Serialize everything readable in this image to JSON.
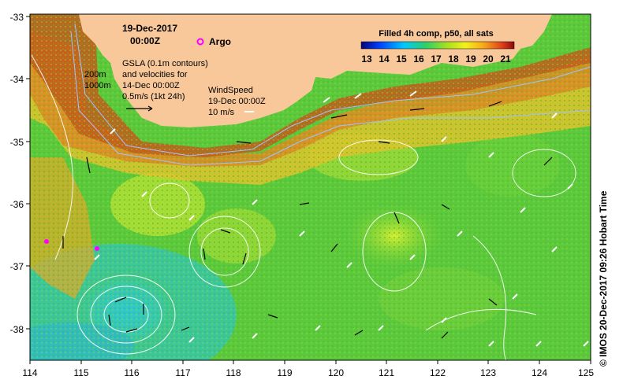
{
  "map": {
    "title_date": "19-Dec-2017",
    "title_time": "00:00Z",
    "argo_label": "Argo",
    "gsla_lines": [
      "GSLA (0.1m contours)",
      "and velocities for",
      "14-Dec 00:00Z",
      "0.5m/s (1kt 24h)"
    ],
    "depth_labels": [
      "200m",
      "1000m"
    ],
    "wind_lines": [
      "WindSpeed",
      "19-Dec 00:00Z",
      "10 m/s"
    ],
    "colorbar_title": "Filled 4h comp, p50, all sats",
    "colorbar_ticks": [
      "13",
      "14",
      "15",
      "16",
      "17",
      "18",
      "19",
      "20",
      "21"
    ],
    "x_ticks": [
      "114",
      "115",
      "116",
      "117",
      "118",
      "119",
      "120",
      "121",
      "122",
      "123",
      "124",
      "125"
    ],
    "y_ticks": [
      "-33",
      "-34",
      "-35",
      "-36",
      "-37",
      "-38"
    ],
    "side_label": "© IMOS 20-Dec-2017 09:26 Hobart Time",
    "colors": {
      "land": "#f9c89a",
      "argo": "#ff00ff",
      "warm": "#c84a0a",
      "cool": "#22c9d8",
      "mid": "#54c93a"
    }
  }
}
